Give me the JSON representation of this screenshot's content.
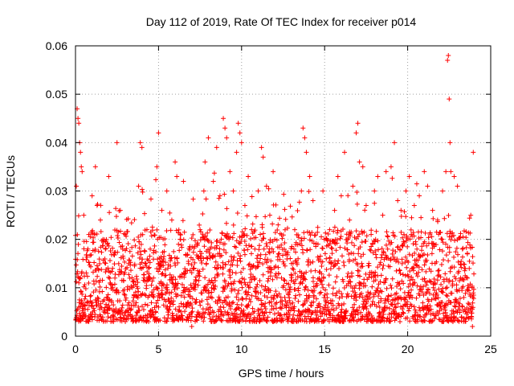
{
  "chart_data": {
    "type": "scatter",
    "title": "Day 112 of 2019, Rate Of TEC Index for receiver p014",
    "xlabel": "GPS time / hours",
    "ylabel": "ROTI / TECUs",
    "xlim": [
      0,
      25
    ],
    "ylim": [
      0,
      0.06
    ],
    "xticks": [
      0,
      5,
      10,
      15,
      20,
      25
    ],
    "xtick_labels": [
      "0",
      "5",
      "10",
      "15",
      "20",
      "25"
    ],
    "yticks": [
      0,
      0.01,
      0.02,
      0.03,
      0.04,
      0.05,
      0.06
    ],
    "ytick_labels": [
      "0",
      "0.01",
      "0.02",
      "0.03",
      "0.04",
      "0.05",
      "0.06"
    ],
    "grid": true,
    "marker": "+",
    "series": [
      {
        "name": "ROTI",
        "color": "#ff0000",
        "points": [
          [
            0.05,
            0.031
          ],
          [
            0.1,
            0.047
          ],
          [
            0.15,
            0.045
          ],
          [
            0.2,
            0.044
          ],
          [
            0.25,
            0.04
          ],
          [
            0.3,
            0.038
          ],
          [
            0.35,
            0.035
          ],
          [
            0.4,
            0.034
          ],
          [
            0.2,
            0.006
          ],
          [
            0.3,
            0.004
          ],
          [
            0.5,
            0.025
          ],
          [
            0.8,
            0.021
          ],
          [
            1.0,
            0.029
          ],
          [
            1.2,
            0.035
          ],
          [
            1.3,
            0.027
          ],
          [
            1.5,
            0.024
          ],
          [
            1.8,
            0.018
          ],
          [
            2.0,
            0.033
          ],
          [
            2.1,
            0.011
          ],
          [
            2.3,
            0.004
          ],
          [
            2.5,
            0.04
          ],
          [
            2.7,
            0.026
          ],
          [
            3.0,
            0.021
          ],
          [
            3.2,
            0.015
          ],
          [
            3.5,
            0.008
          ],
          [
            3.8,
            0.031
          ],
          [
            3.9,
            0.04
          ],
          [
            4.0,
            0.039
          ],
          [
            4.3,
            0.022
          ],
          [
            4.5,
            0.018
          ],
          [
            4.7,
            0.012
          ],
          [
            4.9,
            0.035
          ],
          [
            5.0,
            0.042
          ],
          [
            5.2,
            0.026
          ],
          [
            5.5,
            0.03
          ],
          [
            5.8,
            0.024
          ],
          [
            6.0,
            0.036
          ],
          [
            6.1,
            0.033
          ],
          [
            6.3,
            0.02
          ],
          [
            6.5,
            0.032
          ],
          [
            6.8,
            0.015
          ],
          [
            7.0,
            0.01
          ],
          [
            7.2,
            0.007
          ],
          [
            7.3,
            0.004
          ],
          [
            7.5,
            0.022
          ],
          [
            7.8,
            0.036
          ],
          [
            8.0,
            0.041
          ],
          [
            8.1,
            0.018
          ],
          [
            8.3,
            0.032
          ],
          [
            8.5,
            0.039
          ],
          [
            8.7,
            0.029
          ],
          [
            8.9,
            0.045
          ],
          [
            9.0,
            0.043
          ],
          [
            9.1,
            0.041
          ],
          [
            9.3,
            0.034
          ],
          [
            9.5,
            0.03
          ],
          [
            9.7,
            0.038
          ],
          [
            9.8,
            0.044
          ],
          [
            9.9,
            0.042
          ],
          [
            10.0,
            0.04
          ],
          [
            10.2,
            0.027
          ],
          [
            10.4,
            0.033
          ],
          [
            10.6,
            0.022
          ],
          [
            10.8,
            0.018
          ],
          [
            11.0,
            0.03
          ],
          [
            11.2,
            0.039
          ],
          [
            11.3,
            0.037
          ],
          [
            11.5,
            0.031
          ],
          [
            11.7,
            0.025
          ],
          [
            11.9,
            0.034
          ],
          [
            12.0,
            0.02
          ],
          [
            12.2,
            0.023
          ],
          [
            12.4,
            0.012
          ],
          [
            12.6,
            0.008
          ],
          [
            12.8,
            0.004
          ],
          [
            13.0,
            0.015
          ],
          [
            13.2,
            0.022
          ],
          [
            13.4,
            0.016
          ],
          [
            13.6,
            0.03
          ],
          [
            13.7,
            0.043
          ],
          [
            13.8,
            0.041
          ],
          [
            13.9,
            0.038
          ],
          [
            14.1,
            0.033
          ],
          [
            14.3,
            0.028
          ],
          [
            14.6,
            0.019
          ],
          [
            14.9,
            0.03
          ],
          [
            15.1,
            0.016
          ],
          [
            15.3,
            0.022
          ],
          [
            15.6,
            0.026
          ],
          [
            15.8,
            0.033
          ],
          [
            16.0,
            0.029
          ],
          [
            16.2,
            0.038
          ],
          [
            16.5,
            0.024
          ],
          [
            16.7,
            0.031
          ],
          [
            16.9,
            0.042
          ],
          [
            17.0,
            0.044
          ],
          [
            17.1,
            0.036
          ],
          [
            17.3,
            0.035
          ],
          [
            17.5,
            0.027
          ],
          [
            17.8,
            0.021
          ],
          [
            18.0,
            0.03
          ],
          [
            18.2,
            0.033
          ],
          [
            18.5,
            0.025
          ],
          [
            18.7,
            0.034
          ],
          [
            19.0,
            0.035
          ],
          [
            19.2,
            0.04
          ],
          [
            19.4,
            0.028
          ],
          [
            19.6,
            0.026
          ],
          [
            19.9,
            0.03
          ],
          [
            20.1,
            0.033
          ],
          [
            20.4,
            0.027
          ],
          [
            20.7,
            0.029
          ],
          [
            21.0,
            0.034
          ],
          [
            21.2,
            0.031
          ],
          [
            21.5,
            0.026
          ],
          [
            21.8,
            0.024
          ],
          [
            22.1,
            0.03
          ],
          [
            22.3,
            0.034
          ],
          [
            22.4,
            0.057
          ],
          [
            22.45,
            0.058
          ],
          [
            22.5,
            0.049
          ],
          [
            22.55,
            0.04
          ],
          [
            22.6,
            0.034
          ],
          [
            22.8,
            0.033
          ],
          [
            23.0,
            0.031
          ],
          [
            23.3,
            0.018
          ],
          [
            23.6,
            0.012
          ],
          [
            23.8,
            0.025
          ],
          [
            23.95,
            0.038
          ],
          [
            23.9,
            0.002
          ],
          [
            7.0,
            0.002
          ],
          [
            3.0,
            0.003
          ],
          [
            10.5,
            0.003
          ],
          [
            17.5,
            0.004
          ],
          [
            20.5,
            0.003
          ],
          [
            1.0,
            0.007
          ],
          [
            5.0,
            0.006
          ],
          [
            9.0,
            0.005
          ],
          [
            15.0,
            0.005
          ],
          [
            21.0,
            0.006
          ]
        ]
      }
    ],
    "dense_band": {
      "description": "bulk ROTI values between these bounds, plotted at dense cadence",
      "x_range": [
        0,
        24
      ],
      "typical_low": 0.003,
      "typical_high": 0.022,
      "median": 0.01
    }
  }
}
